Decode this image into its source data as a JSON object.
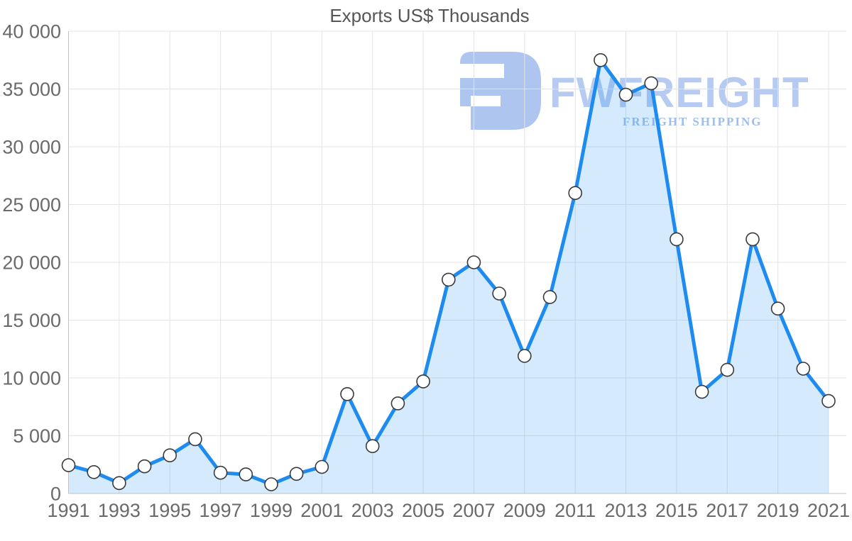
{
  "title": "Exports US$ Thousands",
  "watermark": {
    "brand": "FWFREIGHT",
    "tagline": "FREIGHT SHIPPING",
    "brand_color": "#b7cbf2",
    "tagline_color": "#9fbdec",
    "logo_color": "#aec5ef"
  },
  "chart_data": {
    "type": "area",
    "title": "Exports US$ Thousands",
    "x": [
      1991,
      1992,
      1993,
      1994,
      1995,
      1996,
      1997,
      1998,
      1999,
      2000,
      2001,
      2002,
      2003,
      2004,
      2005,
      2006,
      2007,
      2008,
      2009,
      2010,
      2011,
      2012,
      2013,
      2014,
      2015,
      2016,
      2017,
      2018,
      2019,
      2020,
      2021
    ],
    "values": [
      2450,
      1850,
      900,
      2350,
      3300,
      4700,
      1800,
      1650,
      800,
      1700,
      2300,
      8600,
      4100,
      7800,
      9700,
      18500,
      20000,
      17300,
      11900,
      17000,
      26000,
      37500,
      34500,
      35500,
      22000,
      8800,
      10700,
      22000,
      16000,
      10800,
      8000
    ],
    "ylim": [
      0,
      40000
    ],
    "grid": true,
    "legend_position": "none",
    "y_ticks": [
      {
        "value": 0,
        "label": "0"
      },
      {
        "value": 5000,
        "label": "5 000"
      },
      {
        "value": 10000,
        "label": "10 000"
      },
      {
        "value": 15000,
        "label": "15 000"
      },
      {
        "value": 20000,
        "label": "20 000"
      },
      {
        "value": 25000,
        "label": "25 000"
      },
      {
        "value": 30000,
        "label": "30 000"
      },
      {
        "value": 35000,
        "label": "35 000"
      },
      {
        "value": 40000,
        "label": "40 000"
      }
    ],
    "x_tick_labels": [
      "1991",
      "1993",
      "1995",
      "1997",
      "1999",
      "2001",
      "2003",
      "2005",
      "2007",
      "2009",
      "2011",
      "2013",
      "2015",
      "2017",
      "2019",
      "2021"
    ],
    "line_color": "#1e8bf0",
    "area_fill_tint": "#d8eafc",
    "area_fill_rgba": "rgba(33,150,243,0.19)",
    "marker_fill": "#ffffff",
    "marker_stroke": "#3a3a3a",
    "gridline_color": "#e4e4e4",
    "axis_line_color": "#c2c2c2"
  }
}
